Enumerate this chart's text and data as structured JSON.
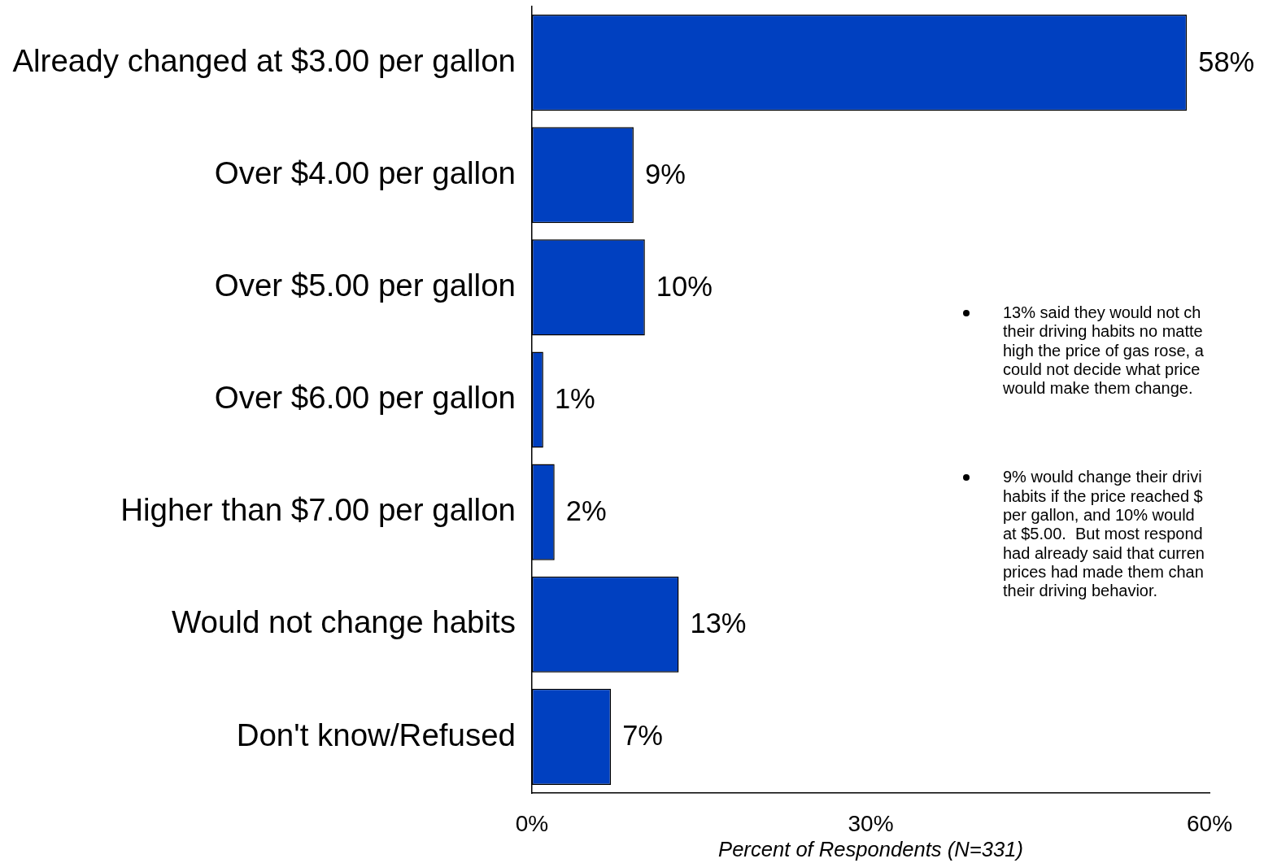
{
  "chart_data": {
    "type": "bar",
    "orientation": "horizontal",
    "categories": [
      "Already changed at $3.00 per gallon",
      "Over $4.00 per gallon",
      "Over $5.00 per gallon",
      "Over $6.00 per gallon",
      "Higher than $7.00 per gallon",
      "Would not change habits",
      "Don't know/Refused"
    ],
    "values": [
      58,
      9,
      10,
      1,
      2,
      13,
      7
    ],
    "color": "#0040c0",
    "value_labels": [
      "58%",
      "9%",
      "10%",
      "1%",
      "2%",
      "13%",
      "7%"
    ],
    "xlim": [
      0,
      60
    ],
    "xticks": [
      {
        "value": 0,
        "label": "0%"
      },
      {
        "value": 30,
        "label": "30%"
      },
      {
        "value": 60,
        "label": "60%"
      }
    ],
    "xlabel": "Percent of Respondents (N=331)",
    "annotations": [
      "13% said they would not ch\ntheir driving habits no matte\nhigh the price of gas rose, a\ncould not decide what price\nwould make them change.",
      "9% would change their drivi\nhabits if the price reached $\nper gallon, and 10% would\nat $5.00.  But most respond\nhad already said that curren\nprices had made them chan\ntheir driving behavior."
    ]
  }
}
